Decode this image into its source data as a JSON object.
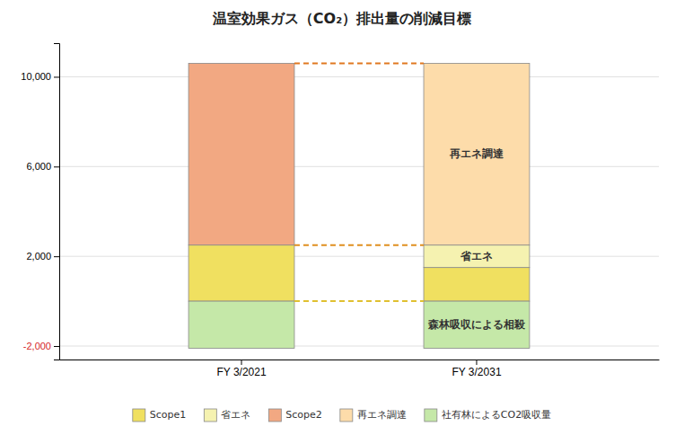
{
  "chart_data": {
    "type": "bar",
    "title": "温室効果ガス（CO₂）排出量の削減目標",
    "categories": [
      "FY 3/2021",
      "FY 3/2031"
    ],
    "stacked": true,
    "series": [
      {
        "name": "Scope1",
        "color": "#F0E060",
        "values": [
          2500,
          1500
        ]
      },
      {
        "name": "省エネ",
        "color": "#F5F2B0",
        "values": [
          null,
          1000
        ]
      },
      {
        "name": "Scope2",
        "color": "#F2A882",
        "values": [
          8100,
          null
        ]
      },
      {
        "name": "再エネ調達",
        "color": "#FDDCAA",
        "values": [
          null,
          8100
        ]
      },
      {
        "name": "社有林によるCO2吸収量",
        "color": "#C5E8A8",
        "values": [
          -2100,
          -2100
        ]
      }
    ],
    "ylim": [
      -2600,
      11500
    ],
    "yticks": [
      {
        "value": -2000,
        "label": "-2,000"
      },
      {
        "value": 2000,
        "label": "2,000"
      },
      {
        "value": 6000,
        "label": "6,000"
      },
      {
        "value": 10000,
        "label": "10,000"
      }
    ],
    "grid": true,
    "legend": "bottom",
    "connectors": [
      {
        "value": 10600,
        "color": "#E07820"
      },
      {
        "value": 2500,
        "color": "#E09020"
      },
      {
        "value": 0,
        "color": "#E0C030"
      }
    ],
    "annotations": [
      {
        "text": "再エネ調達",
        "series": "再エネ調達",
        "category": "FY 3/2031"
      },
      {
        "text": "省エネ",
        "series": "省エネ",
        "category": "FY 3/2031"
      },
      {
        "text": "森林吸収による相殺",
        "series": "社有林によるCO2吸収量",
        "category": "FY 3/2031"
      }
    ]
  }
}
